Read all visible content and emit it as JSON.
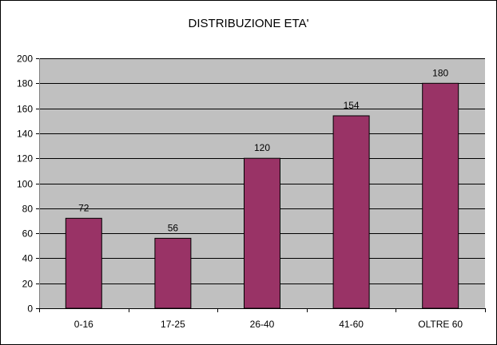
{
  "chart_data": {
    "type": "bar",
    "title": "DISTRIBUZIONE ETA'",
    "xlabel": "",
    "ylabel": "",
    "categories": [
      "0-16",
      "17-25",
      "26-40",
      "41-60",
      "OLTRE 60"
    ],
    "values": [
      72,
      56,
      120,
      154,
      180
    ],
    "ylim": [
      0,
      200
    ],
    "yticks": [
      0,
      20,
      40,
      60,
      80,
      100,
      120,
      140,
      160,
      180,
      200
    ],
    "grid": true,
    "legend": "none",
    "data_labels": true,
    "colors": {
      "bar": "#993366",
      "plot_background": "#c0c0c0",
      "gridline": "#000000"
    }
  }
}
